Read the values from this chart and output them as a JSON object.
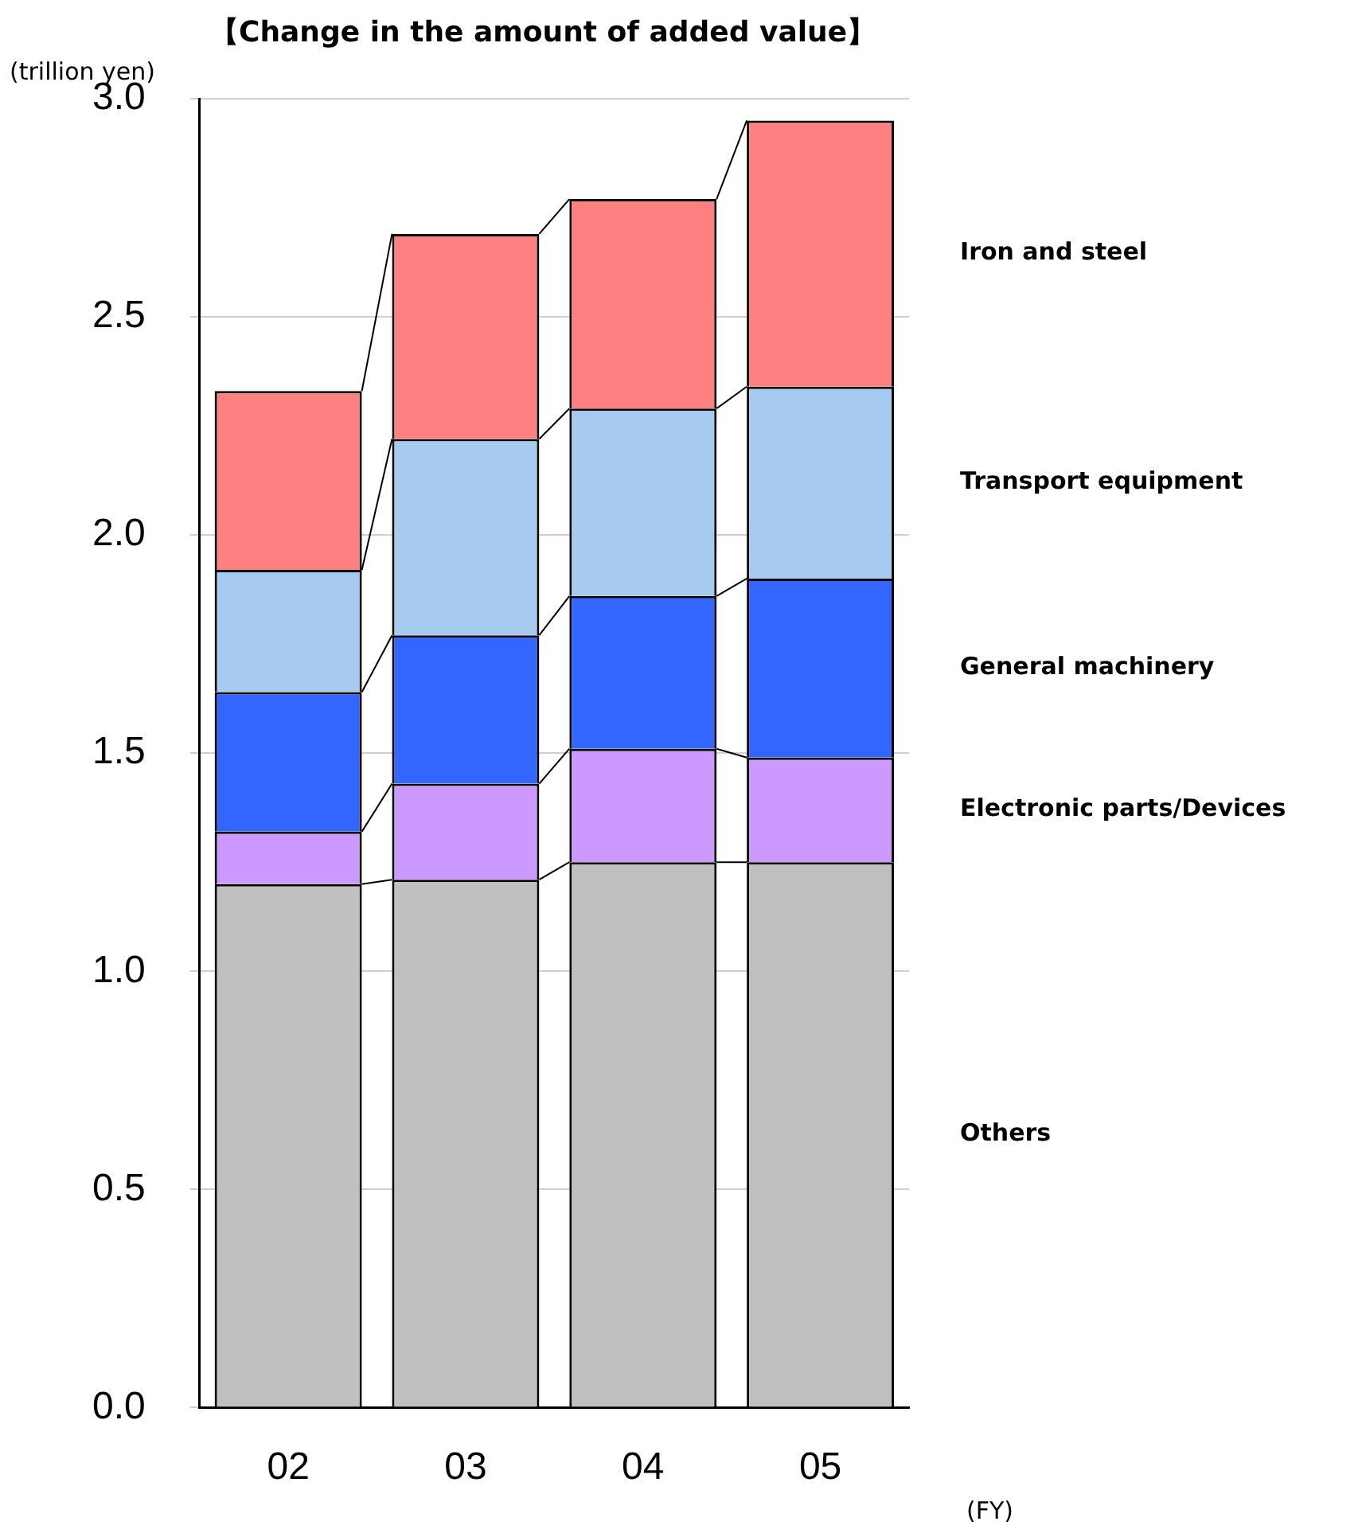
{
  "chart_data": {
    "type": "bar",
    "title": "【Change in the amount of added value】",
    "ylabel": "(trillion yen)",
    "xlabel": "(FY)",
    "categories": [
      "02",
      "03",
      "04",
      "05"
    ],
    "stacked": true,
    "legend": false,
    "grid": "y",
    "ylim": [
      0,
      3
    ],
    "yticks": [
      {
        "value": 0,
        "label": "0.0"
      },
      {
        "value": 0.5,
        "label": "0.5"
      },
      {
        "value": 1,
        "label": "1.0"
      },
      {
        "value": 1.5,
        "label": "1.5"
      },
      {
        "value": 2,
        "label": "2.0"
      },
      {
        "value": 2.5,
        "label": "2.5"
      },
      {
        "value": 3,
        "label": "3.0"
      }
    ],
    "series": [
      {
        "name": "Others",
        "color": "#c0c0c0",
        "values": [
          1.2,
          1.21,
          1.25,
          1.25
        ]
      },
      {
        "name": "Electronic parts/Devices",
        "color": "#cc99ff",
        "values": [
          0.12,
          0.22,
          0.26,
          0.24
        ]
      },
      {
        "name": "General machinery",
        "color": "#3366ff",
        "values": [
          0.32,
          0.34,
          0.35,
          0.41
        ]
      },
      {
        "name": "Transport equipment",
        "color": "#a6caf0",
        "values": [
          0.28,
          0.45,
          0.43,
          0.44
        ]
      },
      {
        "name": "Iron and steel",
        "color": "#ff8080",
        "values": [
          0.41,
          0.47,
          0.48,
          0.61
        ]
      }
    ]
  }
}
